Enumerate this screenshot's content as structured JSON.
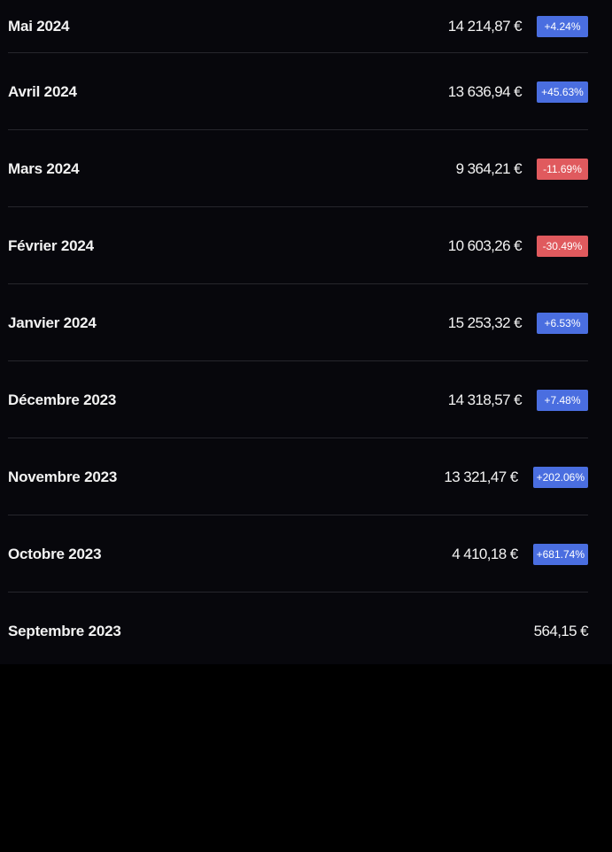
{
  "colors": {
    "background": "#000000",
    "panel": "#07070c",
    "positive_badge": "#4a6ee0",
    "negative_badge": "#e05a5e",
    "divider": "#26262c"
  },
  "rows": [
    {
      "month": "Mai 2024",
      "amount": "14 214,87 €",
      "change": "+4.24%",
      "trend": "up"
    },
    {
      "month": "Avril 2024",
      "amount": "13 636,94 €",
      "change": "+45.63%",
      "trend": "up"
    },
    {
      "month": "Mars 2024",
      "amount": "9 364,21 €",
      "change": "-11.69%",
      "trend": "down"
    },
    {
      "month": "Février 2024",
      "amount": "10 603,26 €",
      "change": "-30.49%",
      "trend": "down"
    },
    {
      "month": "Janvier 2024",
      "amount": "15 253,32 €",
      "change": "+6.53%",
      "trend": "up"
    },
    {
      "month": "Décembre 2023",
      "amount": "14 318,57 €",
      "change": "+7.48%",
      "trend": "up"
    },
    {
      "month": "Novembre 2023",
      "amount": "13 321,47 €",
      "change": "+202.06%",
      "trend": "up"
    },
    {
      "month": "Octobre 2023",
      "amount": "4 410,18 €",
      "change": "+681.74%",
      "trend": "up"
    },
    {
      "month": "Septembre 2023",
      "amount": "564,15 €",
      "change": "",
      "trend": "none"
    }
  ]
}
